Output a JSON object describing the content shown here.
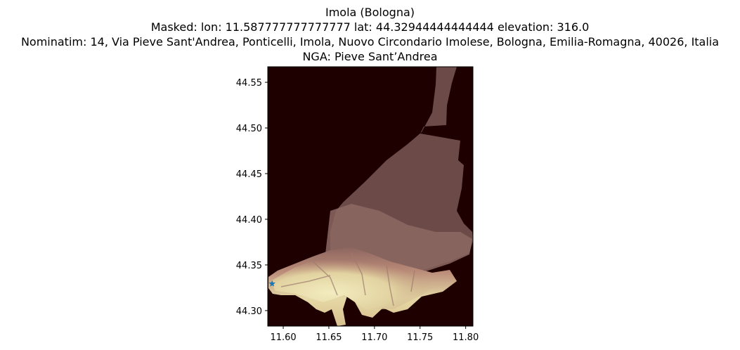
{
  "title": {
    "line1": "Imola (Bologna)",
    "line2": "Masked: lon: 11.587777777777777 lat: 44.32944444444444 elevation: 316.0",
    "line3": "Nominatim: 14, Via Pieve Sant'Andrea, Ponticelli, Imola, Nuovo Circondario Imolese, Bologna, Emilia-Romagna, 40026, Italia",
    "line4": "NGA: Pieve Sant’Andrea"
  },
  "chart_data": {
    "type": "raster-map",
    "xlim": [
      11.583,
      11.808
    ],
    "ylim": [
      44.283,
      44.567
    ],
    "x_ticks": [
      11.6,
      11.65,
      11.7,
      11.75,
      11.8
    ],
    "x_tick_labels": [
      "11.60",
      "11.65",
      "11.70",
      "11.75",
      "11.80"
    ],
    "y_ticks": [
      44.3,
      44.35,
      44.4,
      44.45,
      44.5,
      44.55
    ],
    "y_tick_labels": [
      "44.30",
      "44.35",
      "44.40",
      "44.45",
      "44.50",
      "44.55"
    ],
    "marker": {
      "lon": 11.587777777777777,
      "lat": 44.32944444444444,
      "symbol": "star",
      "color": "#1f77b4"
    },
    "colormap": "pink",
    "background_color": "#1e0000",
    "grid": false
  }
}
